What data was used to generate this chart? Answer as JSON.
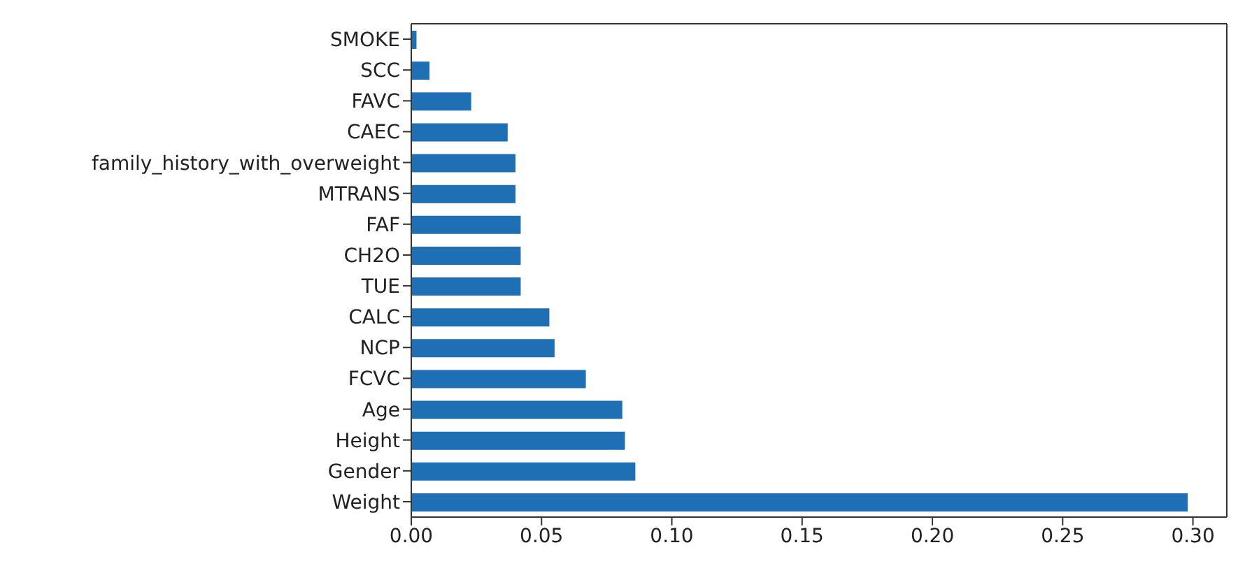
{
  "chart_data": {
    "type": "bar",
    "orientation": "horizontal",
    "categories": [
      "SMOKE",
      "SCC",
      "FAVC",
      "CAEC",
      "family_history_with_overweight",
      "MTRANS",
      "FAF",
      "CH2O",
      "TUE",
      "CALC",
      "NCP",
      "FCVC",
      "Age",
      "Height",
      "Gender",
      "Weight"
    ],
    "values": [
      0.002,
      0.007,
      0.023,
      0.037,
      0.04,
      0.04,
      0.042,
      0.042,
      0.042,
      0.053,
      0.055,
      0.067,
      0.081,
      0.082,
      0.086,
      0.298
    ],
    "color": "#1f6fb4",
    "xlim": [
      0,
      0.313
    ],
    "xticks": [
      {
        "value": 0,
        "label": "0.00"
      },
      {
        "value": 0.05,
        "label": "0.05"
      },
      {
        "value": 0.1,
        "label": "0.10"
      },
      {
        "value": 0.15,
        "label": "0.15"
      },
      {
        "value": 0.2,
        "label": "0.20"
      },
      {
        "value": 0.25,
        "label": "0.25"
      },
      {
        "value": 0.3,
        "label": "0.30"
      }
    ],
    "grid": false,
    "legend": false
  }
}
